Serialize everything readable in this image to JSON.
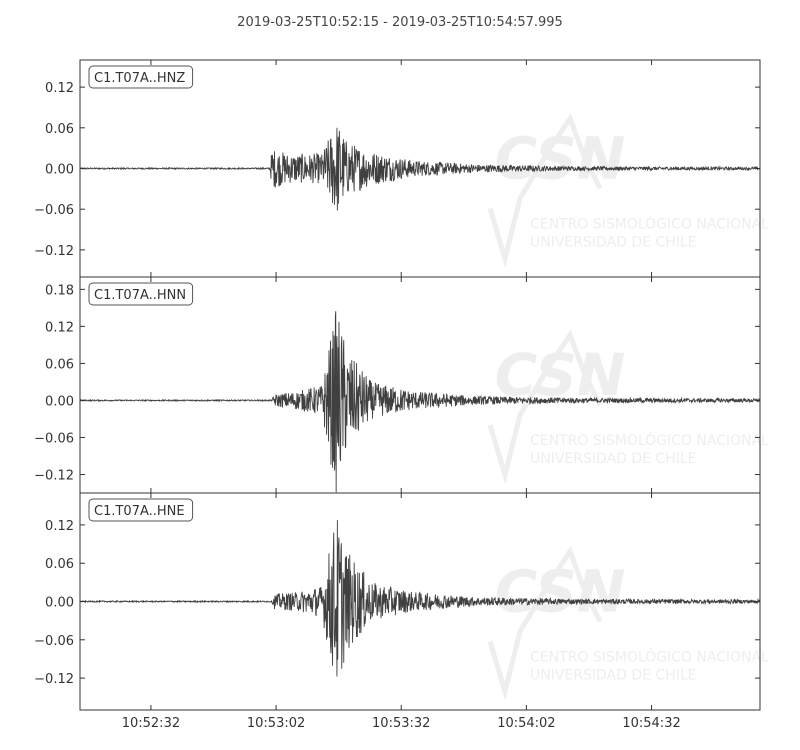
{
  "title": "2019-03-25T10:52:15  -  2019-03-25T10:54:57.995",
  "chart_data": {
    "type": "line",
    "xlabel": "",
    "ylabel": "",
    "x_start": "10:52:15",
    "x_end": "10:54:57.995",
    "x_ticks": [
      "10:52:32",
      "10:53:02",
      "10:53:32",
      "10:54:02",
      "10:54:32"
    ],
    "x_tick_seconds": [
      17,
      47,
      77,
      107,
      137
    ],
    "duration_seconds": 162.995,
    "grid": false,
    "line_color": "#404040",
    "panels": [
      {
        "channel": "C1.T07A..HNZ",
        "ylim": [
          -0.16,
          0.16
        ],
        "y_ticks": [
          0.12,
          0.06,
          0.0,
          -0.06,
          -0.12
        ],
        "y_tick_labels": [
          "0.12",
          "0.06",
          "0.00",
          "−0.06",
          "−0.12"
        ],
        "envelope": [
          {
            "t": 0,
            "a": 0.001
          },
          {
            "t": 45.5,
            "a": 0.001
          },
          {
            "t": 46,
            "a": 0.03
          },
          {
            "t": 50,
            "a": 0.022
          },
          {
            "t": 58,
            "a": 0.022
          },
          {
            "t": 61.5,
            "a": 0.072
          },
          {
            "t": 64,
            "a": 0.04
          },
          {
            "t": 70,
            "a": 0.025
          },
          {
            "t": 80,
            "a": 0.012
          },
          {
            "t": 95,
            "a": 0.006
          },
          {
            "t": 120,
            "a": 0.003
          },
          {
            "t": 163,
            "a": 0.002
          }
        ]
      },
      {
        "channel": "C1.T07A..HNN",
        "ylim": [
          -0.15,
          0.2
        ],
        "y_ticks": [
          0.18,
          0.12,
          0.06,
          0.0,
          -0.06,
          -0.12
        ],
        "y_tick_labels": [
          "0.18",
          "0.12",
          "0.06",
          "0.00",
          "−0.06",
          "−0.12"
        ],
        "envelope": [
          {
            "t": 0,
            "a": 0.001
          },
          {
            "t": 46,
            "a": 0.001
          },
          {
            "t": 46.5,
            "a": 0.01
          },
          {
            "t": 52,
            "a": 0.015
          },
          {
            "t": 58,
            "a": 0.025
          },
          {
            "t": 61.5,
            "a": 0.155
          },
          {
            "t": 64,
            "a": 0.08
          },
          {
            "t": 70,
            "a": 0.03
          },
          {
            "t": 80,
            "a": 0.015
          },
          {
            "t": 95,
            "a": 0.007
          },
          {
            "t": 120,
            "a": 0.004
          },
          {
            "t": 163,
            "a": 0.003
          }
        ]
      },
      {
        "channel": "C1.T07A..HNE",
        "ylim": [
          -0.17,
          0.17
        ],
        "y_ticks": [
          0.12,
          0.06,
          0.0,
          -0.06,
          -0.12
        ],
        "y_tick_labels": [
          "0.12",
          "0.06",
          "0.00",
          "−0.06",
          "−0.12"
        ],
        "envelope": [
          {
            "t": 0,
            "a": 0.001
          },
          {
            "t": 46,
            "a": 0.001
          },
          {
            "t": 46.5,
            "a": 0.012
          },
          {
            "t": 52,
            "a": 0.015
          },
          {
            "t": 58,
            "a": 0.025
          },
          {
            "t": 61.5,
            "a": 0.14
          },
          {
            "t": 64,
            "a": 0.08
          },
          {
            "t": 70,
            "a": 0.03
          },
          {
            "t": 80,
            "a": 0.015
          },
          {
            "t": 95,
            "a": 0.007
          },
          {
            "t": 120,
            "a": 0.004
          },
          {
            "t": 163,
            "a": 0.003
          }
        ]
      }
    ]
  },
  "watermark": {
    "logo": "CSN",
    "line1": "CENTRO SISMOLÓGICO NACIONAL",
    "line2": "UNIVERSIDAD DE CHILE"
  }
}
